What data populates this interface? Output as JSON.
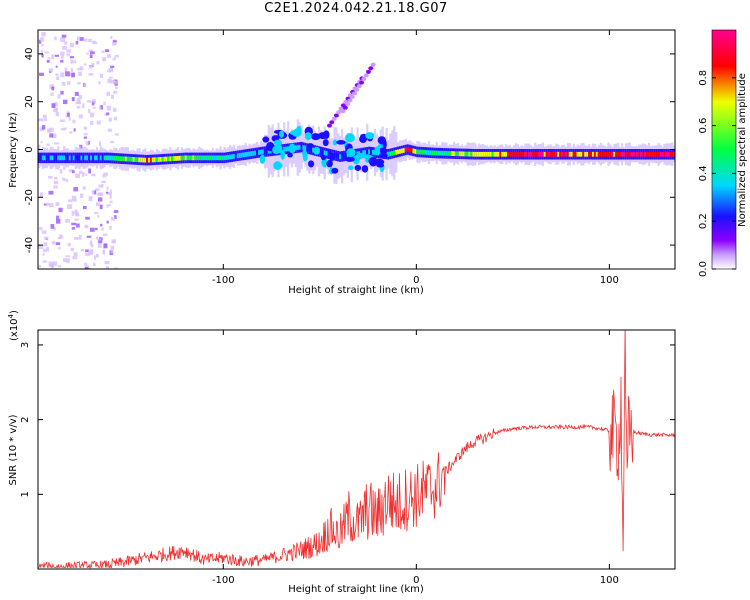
{
  "title": "C2E1.2024.042.21.18.G07",
  "colors": {
    "snr_line": "#ee3030",
    "colormap": [
      "#ffffff",
      "#8a00ff",
      "#1a10ff",
      "#00d8ff",
      "#00ff40",
      "#f0ff00",
      "#ff0000",
      "#ff0090"
    ]
  },
  "chart_data": [
    {
      "type": "heatmap",
      "xlabel": "Height of straight line (km)",
      "ylabel": "Frequency (Hz)",
      "xlim": [
        -196,
        134
      ],
      "ylim": [
        -50,
        50
      ],
      "xticks": [
        -100,
        0,
        100
      ],
      "xtick_labels": [
        "-100",
        "0",
        "100"
      ],
      "yticks": [
        -40,
        -20,
        0,
        20,
        40
      ],
      "ytick_labels": [
        "-40",
        "-20",
        "0",
        "20",
        "40"
      ],
      "colorbar": {
        "label": "Normalized spectral amplitude",
        "range": [
          0,
          1
        ],
        "ticks": [
          0.0,
          0.2,
          0.4,
          0.6,
          0.8
        ],
        "tick_labels": [
          "0.0",
          "0.2",
          "0.4",
          "0.6",
          "0.8"
        ]
      },
      "ridge": {
        "x": [
          -196,
          -180,
          -160,
          -140,
          -120,
          -100,
          -80,
          -60,
          -40,
          -25,
          -15,
          -5,
          0,
          10,
          30,
          60,
          90,
          100,
          110,
          134
        ],
        "frequency": [
          -3.5,
          -3.5,
          -3.5,
          -4.5,
          -3.5,
          -3.5,
          -1,
          1,
          -3,
          -1,
          -2,
          0,
          -1,
          -1.5,
          -2,
          -2,
          -2,
          -2,
          -2,
          -2
        ],
        "amplitude": [
          0.35,
          0.35,
          0.45,
          0.75,
          0.6,
          0.45,
          0.35,
          0.4,
          0.3,
          0.35,
          0.45,
          0.9,
          0.6,
          0.55,
          0.65,
          0.9,
          0.8,
          0.85,
          0.9,
          0.95
        ]
      }
    },
    {
      "type": "line",
      "xlabel": "Height of straight line (km)",
      "ylabel": "SNR (10 * v/v)",
      "y_multiplier": "(x10",
      "y_multiplier_exponent": "4",
      "y_multiplier_close": ")",
      "xlim": [
        -196,
        134
      ],
      "ylim": [
        0,
        3.2
      ],
      "xticks": [
        -100,
        0,
        100
      ],
      "xtick_labels": [
        "-100",
        "0",
        "100"
      ],
      "yticks": [
        1,
        2,
        3
      ],
      "ytick_labels": [
        "1",
        "2",
        "3"
      ],
      "series": [
        {
          "x": [
            -196,
            -180,
            -160,
            -150,
            -140,
            -130,
            -120,
            -110,
            -100,
            -90,
            -80,
            -70,
            -60,
            -50,
            -45,
            -40,
            -35,
            -30,
            -25,
            -20,
            -15,
            -10,
            -5,
            0,
            5,
            10,
            15,
            20,
            25,
            30,
            35,
            40,
            50,
            60,
            70,
            80,
            90,
            95,
            100,
            103,
            105,
            106,
            107,
            108,
            109,
            110,
            115,
            120,
            134
          ],
          "y": [
            0.03,
            0.03,
            0.05,
            0.1,
            0.15,
            0.2,
            0.25,
            0.12,
            0.15,
            0.1,
            0.12,
            0.18,
            0.25,
            0.35,
            0.55,
            0.45,
            0.7,
            0.6,
            0.8,
            0.7,
            0.95,
            0.85,
            0.95,
            0.98,
            1.05,
            1.1,
            1.3,
            1.45,
            1.6,
            1.7,
            1.75,
            1.82,
            1.88,
            1.9,
            1.9,
            1.9,
            1.9,
            1.88,
            1.85,
            1.8,
            1.7,
            2.5,
            0.1,
            3.1,
            1.0,
            1.85,
            1.82,
            1.8,
            1.79
          ]
        }
      ]
    }
  ]
}
